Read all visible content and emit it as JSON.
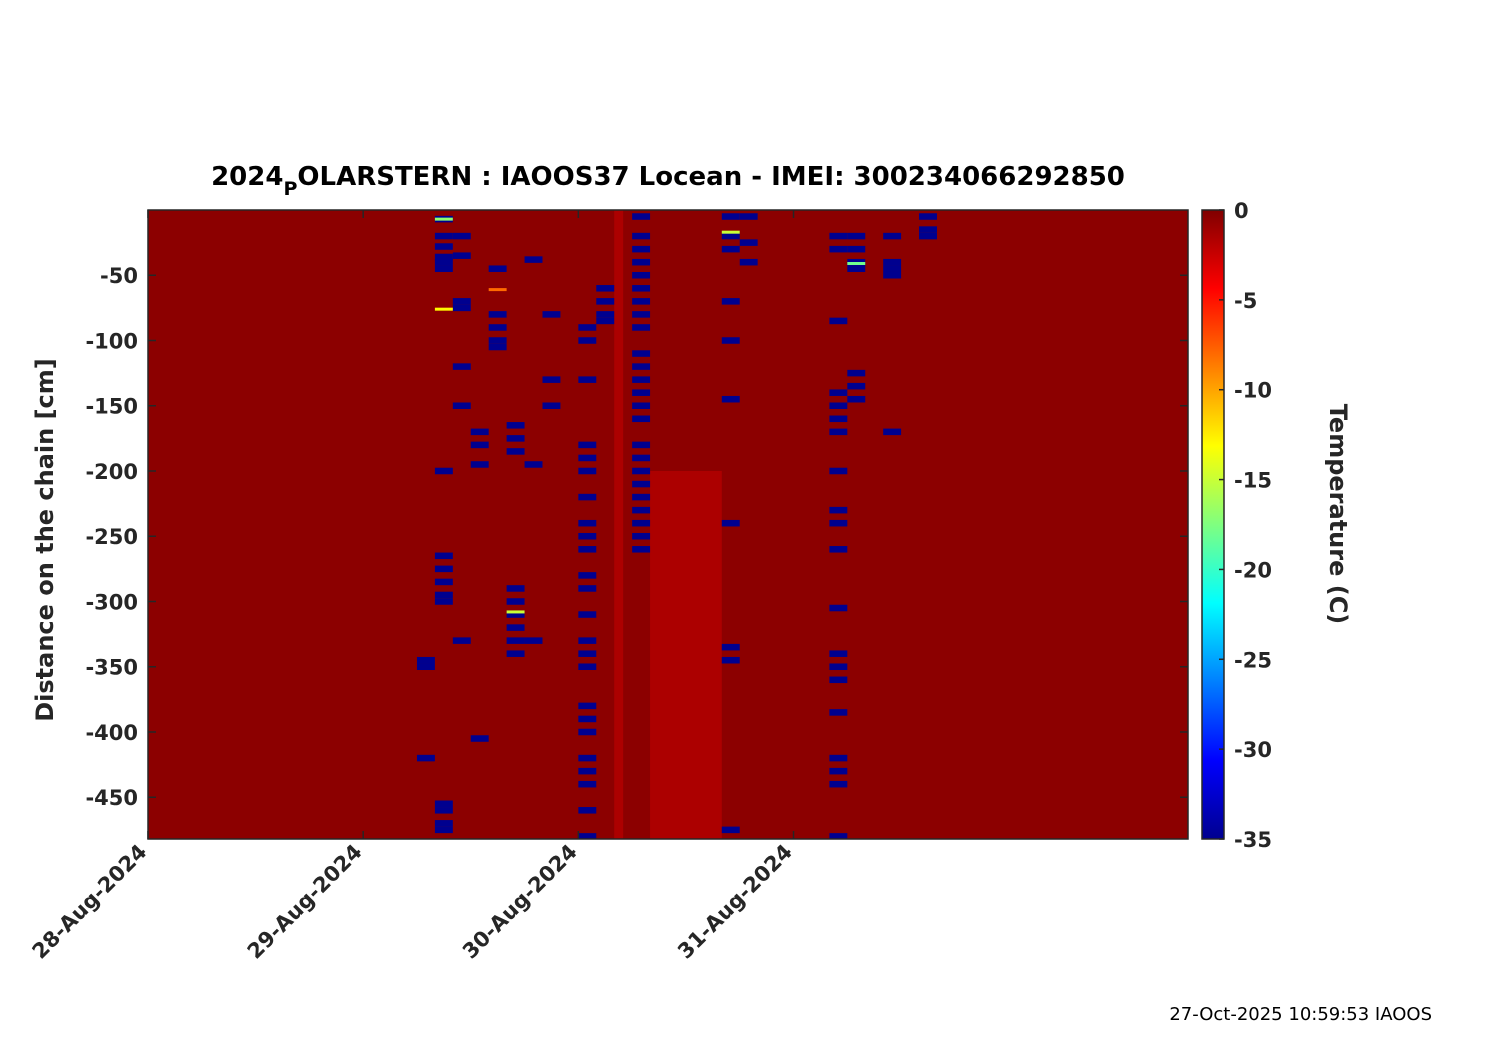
{
  "footer": "27-Oct-2025 10:59:53 IAOOS",
  "colors": {
    "background_mean": "#820000",
    "anomaly": "#00008c",
    "band": "#ad0000"
  },
  "chart_data": {
    "type": "heatmap",
    "title_main": "2024",
    "title_sub": "P",
    "title_rest": "OLARSTERN : IAOOS37  Locean - IMEI: 300234066292850",
    "ylabel": "Distance on the chain [cm]",
    "colorbar_label": "Temperature (C)",
    "colormap": "jet",
    "xlim": [
      "2024-08-28 00:00",
      "2024-09-01 20:00"
    ],
    "x_ticks": [
      "28-Aug-2024",
      "29-Aug-2024",
      "30-Aug-2024",
      "31-Aug-2024"
    ],
    "ylim": [
      -482,
      0
    ],
    "y_ticks": [
      -50,
      -100,
      -150,
      -200,
      -250,
      -300,
      -350,
      -400,
      -450
    ],
    "clim": [
      -35,
      0
    ],
    "cbar_ticks": [
      0,
      -5,
      -10,
      -15,
      -20,
      -25,
      -30,
      -35
    ],
    "background_value": -0.4,
    "bands": [
      {
        "t0": "2024-08-30 04:00",
        "t1": "2024-08-30 05:00",
        "d0": 0,
        "d1": -482,
        "value": -1.5
      },
      {
        "t0": "2024-08-30 08:00",
        "t1": "2024-08-30 16:00",
        "d0": -200,
        "d1": -482,
        "value": -1.5
      }
    ],
    "cold_spots": [
      {
        "t": "2024-08-29 06:00",
        "depths": [
          -345,
          -350,
          -420
        ]
      },
      {
        "t": "2024-08-29 08:00",
        "depths": [
          -7,
          -20,
          -28,
          -36,
          -40,
          -45,
          -200,
          -265,
          -275,
          -285,
          -295,
          -300,
          -455,
          -460,
          -470,
          -475
        ]
      },
      {
        "t": "2024-08-29 10:00",
        "depths": [
          -20,
          -35,
          -70,
          -75,
          -120,
          -150,
          -330
        ]
      },
      {
        "t": "2024-08-29 12:00",
        "depths": [
          -170,
          -180,
          -195,
          -405
        ]
      },
      {
        "t": "2024-08-29 14:00",
        "depths": [
          -45,
          -80,
          -90,
          -100,
          -105
        ]
      },
      {
        "t": "2024-08-29 16:00",
        "depths": [
          -165,
          -175,
          -185,
          -290,
          -300,
          -310,
          -320,
          -330,
          -340
        ]
      },
      {
        "t": "2024-08-29 18:00",
        "depths": [
          -38,
          -195,
          -330
        ]
      },
      {
        "t": "2024-08-29 20:00",
        "depths": [
          -80,
          -130,
          -150
        ]
      },
      {
        "t": "2024-08-30 00:00",
        "depths": [
          -90,
          -100,
          -130,
          -180,
          -190,
          -200,
          -220,
          -240,
          -250,
          -260,
          -280,
          -290,
          -310,
          -330,
          -340,
          -350,
          -380,
          -390,
          -400,
          -420,
          -430,
          -440,
          -460,
          -480
        ]
      },
      {
        "t": "2024-08-30 02:00",
        "depths": [
          -60,
          -70,
          -80,
          -85
        ]
      },
      {
        "t": "2024-08-30 06:00",
        "depths": [
          -5,
          -20,
          -30,
          -40,
          -50,
          -60,
          -70,
          -80,
          -90,
          -110,
          -120,
          -130,
          -140,
          -150,
          -160,
          -180,
          -190,
          -200,
          -210,
          -220,
          -230,
          -240,
          -250,
          -260
        ]
      },
      {
        "t": "2024-08-30 16:00",
        "depths": [
          -5,
          -20,
          -30,
          -70,
          -100,
          -145,
          -240,
          -335,
          -345,
          -475
        ]
      },
      {
        "t": "2024-08-30 18:00",
        "depths": [
          -5,
          -25,
          -40
        ]
      },
      {
        "t": "2024-08-31 04:00",
        "depths": [
          -20,
          -30,
          -85,
          -140,
          -150,
          -160,
          -170,
          -200,
          -230,
          -240,
          -260,
          -305,
          -340,
          -350,
          -360,
          -385,
          -420,
          -430,
          -440,
          -480
        ]
      },
      {
        "t": "2024-08-31 06:00",
        "depths": [
          -20,
          -30,
          -40,
          -45,
          -125,
          -135,
          -145
        ]
      },
      {
        "t": "2024-08-31 10:00",
        "depths": [
          -20,
          -40,
          -45,
          -50,
          -170
        ]
      },
      {
        "t": "2024-08-31 14:00",
        "depths": [
          -5,
          -15,
          -20
        ]
      }
    ],
    "warm_streaks": [
      {
        "t": "2024-08-29 08:00",
        "depth": -7,
        "value": -17
      },
      {
        "t": "2024-08-29 08:00",
        "depth": -76,
        "value": -13
      },
      {
        "t": "2024-08-29 14:00",
        "depth": -61,
        "value": -8
      },
      {
        "t": "2024-08-29 16:00",
        "depth": -308,
        "value": -15
      },
      {
        "t": "2024-08-30 16:00",
        "depth": -17,
        "value": -15
      },
      {
        "t": "2024-08-31 06:00",
        "depth": -41,
        "value": -18
      }
    ]
  }
}
